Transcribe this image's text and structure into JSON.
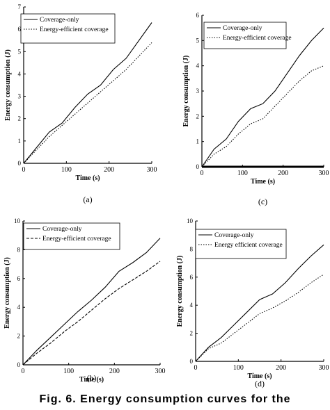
{
  "caption": "Fig. 6. Energy consumption curves for the",
  "legend_labels": [
    "Coverage-only",
    "Energy-efficient coverage"
  ],
  "chart_data": [
    {
      "panel": "a",
      "type": "line",
      "caption": "(a)",
      "xlabel": "Time (s)",
      "ylabel": "Energy consumption (J)",
      "xlim": [
        0,
        300
      ],
      "ylim": [
        0,
        7
      ],
      "xticks": [
        0,
        100,
        200,
        300
      ],
      "yticks": [
        0,
        1,
        2,
        3,
        4,
        5,
        6,
        7
      ],
      "legend": "top-left",
      "series": [
        {
          "name": "Coverage-only",
          "style": "solid",
          "x": [
            0,
            30,
            60,
            90,
            120,
            150,
            180,
            210,
            240,
            270,
            300
          ],
          "y": [
            0,
            0.7,
            1.4,
            1.8,
            2.5,
            3.1,
            3.5,
            4.2,
            4.7,
            5.5,
            6.3
          ]
        },
        {
          "name": "Energy-efficient coverage",
          "style": "dotted",
          "x": [
            0,
            30,
            60,
            90,
            120,
            150,
            180,
            210,
            240,
            270,
            300
          ],
          "y": [
            0,
            0.6,
            1.2,
            1.7,
            2.2,
            2.7,
            3.2,
            3.7,
            4.2,
            4.8,
            5.4
          ]
        }
      ]
    },
    {
      "panel": "c",
      "type": "line",
      "caption": "(c)",
      "xlabel": "Time (s)",
      "ylabel": "Energy consumption (J)",
      "xlim": [
        0,
        300
      ],
      "ylim": [
        0,
        6
      ],
      "xticks": [
        0,
        100,
        200,
        300
      ],
      "yticks": [
        0,
        1,
        2,
        3,
        4,
        5,
        6
      ],
      "legend": "top-left",
      "series": [
        {
          "name": "Coverage-only",
          "style": "solid",
          "x": [
            0,
            30,
            60,
            90,
            120,
            150,
            180,
            210,
            240,
            270,
            300
          ],
          "y": [
            0,
            0.7,
            1.1,
            1.8,
            2.3,
            2.5,
            3.0,
            3.7,
            4.4,
            5.0,
            5.5
          ]
        },
        {
          "name": "Energy-efficient coverage",
          "style": "dotted",
          "x": [
            0,
            30,
            60,
            90,
            120,
            150,
            180,
            210,
            240,
            270,
            300
          ],
          "y": [
            0,
            0.5,
            0.8,
            1.3,
            1.7,
            1.9,
            2.4,
            2.9,
            3.4,
            3.8,
            4.0
          ]
        }
      ]
    },
    {
      "panel": "b",
      "type": "line",
      "caption": "(b)",
      "xlabel": "Time (s)",
      "ylabel": "Energy consumption (J)",
      "xlim": [
        0,
        300
      ],
      "ylim": [
        0,
        10
      ],
      "xticks": [
        0,
        100,
        200,
        300
      ],
      "yticks": [
        0,
        2,
        4,
        6,
        8,
        10
      ],
      "legend": "top-left",
      "series": [
        {
          "name": "Coverage-only",
          "style": "solid",
          "x": [
            0,
            30,
            60,
            90,
            120,
            150,
            180,
            210,
            240,
            270,
            300
          ],
          "y": [
            0,
            1.0,
            1.9,
            2.8,
            3.7,
            4.5,
            5.4,
            6.5,
            7.1,
            7.8,
            8.8
          ]
        },
        {
          "name": "Energy-efficient coverage",
          "style": "dashed",
          "x": [
            0,
            30,
            60,
            90,
            120,
            150,
            180,
            210,
            240,
            270,
            300
          ],
          "y": [
            0,
            0.8,
            1.5,
            2.3,
            3.0,
            3.8,
            4.6,
            5.3,
            5.9,
            6.5,
            7.2
          ]
        }
      ]
    },
    {
      "panel": "d",
      "type": "line",
      "caption": "(d)",
      "xlabel": "Time (s)",
      "ylabel": "Energy consumption (J)",
      "xlim": [
        0,
        300
      ],
      "ylim": [
        0,
        10
      ],
      "xticks": [
        0,
        100,
        200,
        300
      ],
      "yticks": [
        0,
        2,
        4,
        6,
        8,
        10
      ],
      "legend": "top-left",
      "series": [
        {
          "name": "Coverage-only",
          "style": "solid",
          "x": [
            0,
            30,
            60,
            90,
            120,
            150,
            180,
            210,
            240,
            270,
            300
          ],
          "y": [
            0,
            1.0,
            1.7,
            2.6,
            3.5,
            4.4,
            4.8,
            5.6,
            6.6,
            7.5,
            8.3
          ]
        },
        {
          "name": "Energy efficient coverage",
          "style": "dotted",
          "x": [
            0,
            30,
            60,
            90,
            120,
            150,
            180,
            210,
            240,
            270,
            300
          ],
          "y": [
            0,
            0.9,
            1.3,
            2.0,
            2.7,
            3.4,
            3.8,
            4.3,
            4.9,
            5.6,
            6.2
          ]
        }
      ]
    }
  ]
}
